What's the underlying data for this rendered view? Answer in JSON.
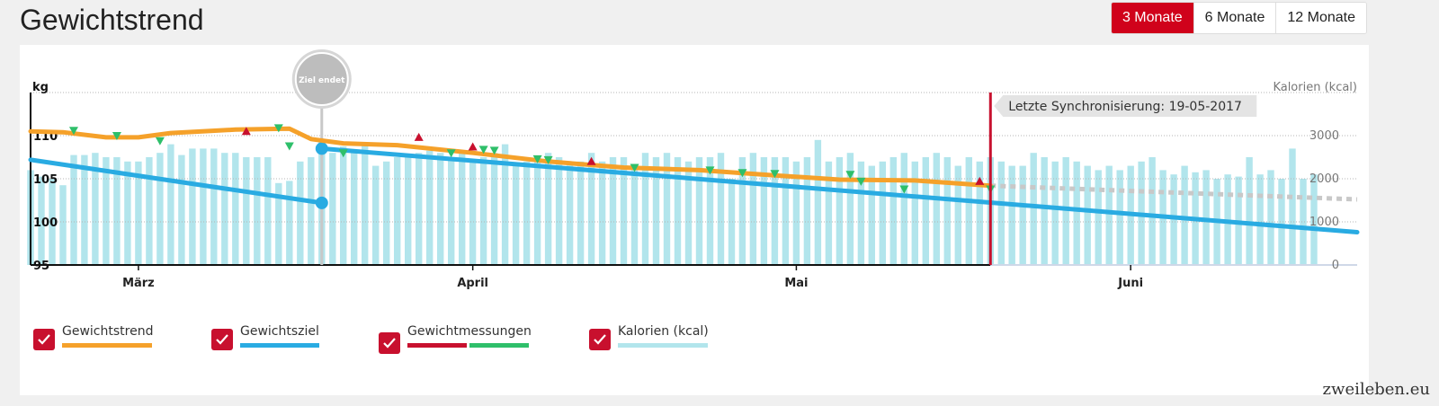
{
  "page": {
    "title": "Gewichtstrend",
    "watermark": "zweileben.eu"
  },
  "range_buttons": [
    {
      "label": "3 Monate",
      "active": true
    },
    {
      "label": "6 Monate",
      "active": false
    },
    {
      "label": "12 Monate",
      "active": false
    }
  ],
  "legend": [
    {
      "label": "Gewichtstrend",
      "colors": [
        "#f5a12a"
      ]
    },
    {
      "label": "Gewichtsziel",
      "colors": [
        "#29abe2"
      ]
    },
    {
      "label": "Gewichtmessungen",
      "colors": [
        "#c8102e",
        "#2ebf6a"
      ]
    },
    {
      "label": "Kalorien (kcal)",
      "colors": [
        "#b2e5ec"
      ]
    }
  ],
  "colors": {
    "trend": "#f5a12a",
    "goal": "#29abe2",
    "up_marker": "#c8102e",
    "down_marker": "#2ebf6a",
    "calories": "#b2e5ec",
    "sync_line": "#c8102e",
    "goal_pin": "#c8c8c8"
  },
  "chart_data": {
    "type": "line",
    "x_axis": {
      "start": "2017-02-19",
      "end": "2017-06-22",
      "month_labels": [
        {
          "label": "März",
          "date": "2017-03-01"
        },
        {
          "label": "April",
          "date": "2017-04-01"
        },
        {
          "label": "Mai",
          "date": "2017-05-01"
        },
        {
          "label": "Juni",
          "date": "2017-06-01"
        }
      ]
    },
    "y_left": {
      "unit": "kg",
      "min": 95,
      "max": 115,
      "ticks": [
        95,
        100,
        105,
        110
      ]
    },
    "y_right": {
      "unit": "Kalorien (kcal)",
      "min": 0,
      "max": 4000,
      "ticks": [
        0,
        1000,
        2000,
        3000
      ]
    },
    "goal_pin": {
      "label": "Ziel endet",
      "date": "2017-03-18"
    },
    "sync": {
      "label": "Letzte Synchronisierung: 19-05-2017",
      "date": "2017-05-19"
    },
    "weight_trend": [
      {
        "date": "2017-02-19",
        "kg": 110.5
      },
      {
        "date": "2017-02-22",
        "kg": 110.4
      },
      {
        "date": "2017-02-26",
        "kg": 109.8
      },
      {
        "date": "2017-03-01",
        "kg": 109.8
      },
      {
        "date": "2017-03-04",
        "kg": 110.3
      },
      {
        "date": "2017-03-10",
        "kg": 110.7
      },
      {
        "date": "2017-03-15",
        "kg": 110.8
      },
      {
        "date": "2017-03-17",
        "kg": 109.6
      },
      {
        "date": "2017-03-20",
        "kg": 109.1
      },
      {
        "date": "2017-03-25",
        "kg": 108.9
      },
      {
        "date": "2017-04-01",
        "kg": 108.0
      },
      {
        "date": "2017-04-08",
        "kg": 107.0
      },
      {
        "date": "2017-04-15",
        "kg": 106.3
      },
      {
        "date": "2017-04-22",
        "kg": 106.0
      },
      {
        "date": "2017-04-29",
        "kg": 105.4
      },
      {
        "date": "2017-05-05",
        "kg": 104.9
      },
      {
        "date": "2017-05-12",
        "kg": 104.8
      },
      {
        "date": "2017-05-19",
        "kg": 104.2
      }
    ],
    "weight_forecast": [
      {
        "date": "2017-05-19",
        "kg": 104.2
      },
      {
        "date": "2017-06-22",
        "kg": 102.6
      }
    ],
    "goal_line_old": [
      {
        "date": "2017-02-19",
        "kg": 107.2
      },
      {
        "date": "2017-03-18",
        "kg": 102.2
      }
    ],
    "goal_line_new": [
      {
        "date": "2017-03-18",
        "kg": 108.5
      },
      {
        "date": "2017-06-22",
        "kg": 98.8
      }
    ],
    "measurements_up": [
      {
        "date": "2017-03-11",
        "kg": 110.5
      },
      {
        "date": "2017-03-27",
        "kg": 109.8
      },
      {
        "date": "2017-04-01",
        "kg": 108.7
      },
      {
        "date": "2017-04-12",
        "kg": 107.0
      },
      {
        "date": "2017-05-18",
        "kg": 104.7
      }
    ],
    "measurements_down": [
      {
        "date": "2017-02-23",
        "kg": 110.6
      },
      {
        "date": "2017-02-27",
        "kg": 110.0
      },
      {
        "date": "2017-03-03",
        "kg": 109.4
      },
      {
        "date": "2017-03-14",
        "kg": 110.9
      },
      {
        "date": "2017-03-15",
        "kg": 108.8
      },
      {
        "date": "2017-03-20",
        "kg": 108.0
      },
      {
        "date": "2017-03-30",
        "kg": 108.0
      },
      {
        "date": "2017-04-02",
        "kg": 108.4
      },
      {
        "date": "2017-04-03",
        "kg": 108.3
      },
      {
        "date": "2017-04-07",
        "kg": 107.3
      },
      {
        "date": "2017-04-08",
        "kg": 107.2
      },
      {
        "date": "2017-04-16",
        "kg": 106.3
      },
      {
        "date": "2017-04-23",
        "kg": 106.0
      },
      {
        "date": "2017-04-26",
        "kg": 105.7
      },
      {
        "date": "2017-04-29",
        "kg": 105.6
      },
      {
        "date": "2017-05-06",
        "kg": 105.5
      },
      {
        "date": "2017-05-07",
        "kg": 104.7
      },
      {
        "date": "2017-05-11",
        "kg": 103.8
      },
      {
        "date": "2017-05-19",
        "kg": 103.8
      }
    ],
    "calories_start": "2017-02-19",
    "calories_kcal": [
      2200,
      2050,
      2000,
      1850,
      2550,
      2550,
      2600,
      2500,
      2500,
      2400,
      2400,
      2500,
      2600,
      2800,
      2550,
      2700,
      2700,
      2700,
      2600,
      2600,
      2500,
      2500,
      2500,
      1900,
      1950,
      2400,
      2500,
      2900,
      2600,
      2750,
      2600,
      2800,
      2300,
      2400,
      2500,
      2500,
      2600,
      2650,
      2600,
      2500,
      2600,
      2400,
      2500,
      2600,
      2800,
      2300,
      2400,
      2500,
      2600,
      2500,
      2400,
      2400,
      2600,
      2400,
      2500,
      2500,
      2300,
      2600,
      2500,
      2600,
      2500,
      2400,
      2500,
      2500,
      2600,
      2000,
      2500,
      2600,
      2500,
      2500,
      2500,
      2400,
      2500,
      2900,
      2400,
      2500,
      2600,
      2400,
      2300,
      2400,
      2500,
      2600,
      2400,
      2500,
      2600,
      2500,
      2300,
      2500,
      2400,
      2500,
      2400,
      2300,
      2300,
      2600,
      2500,
      2400,
      2500,
      2400,
      2300,
      2200,
      2300,
      2200,
      2300,
      2400,
      2500,
      2200,
      2100,
      2300,
      2150,
      2200,
      2000,
      2100,
      2050,
      2500,
      2100,
      2200,
      2000,
      2700,
      2000,
      2100
    ]
  }
}
